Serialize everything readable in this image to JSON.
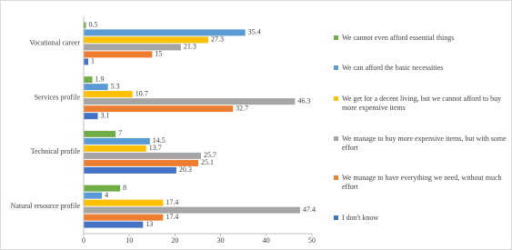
{
  "chart_data": {
    "type": "bar",
    "orientation": "horizontal",
    "categories": [
      "Vocational career",
      "Services profile",
      "Technical profile",
      "Natural resource profile"
    ],
    "series": [
      {
        "name": "We cannot even afford essential things",
        "color": "#70ad47",
        "values": [
          0.5,
          1.9,
          7,
          8
        ]
      },
      {
        "name": "We can afford the basic necessities",
        "color": "#5b9bd5",
        "values": [
          35.4,
          5.3,
          14.5,
          4
        ]
      },
      {
        "name": "We get for a decent living, but we cannot afford to buy more expensive items",
        "color": "#ffc000",
        "values": [
          27.3,
          10.7,
          13.7,
          17.4
        ]
      },
      {
        "name": "We manage to buy more expensive items, but with some effort",
        "color": "#a5a5a5",
        "values": [
          21.3,
          46.3,
          25.7,
          47.4
        ]
      },
      {
        "name": "We manage to have everything we need, without much effort",
        "color": "#ed7d31",
        "values": [
          15,
          32.7,
          25.1,
          17.4
        ]
      },
      {
        "name": "I don't know",
        "color": "#4472c4",
        "values": [
          1,
          3.1,
          20.3,
          13
        ]
      }
    ],
    "xlim": [
      0,
      50
    ],
    "xticks": [
      0,
      10,
      20,
      30,
      40,
      50
    ],
    "grid": false,
    "legend": "right"
  }
}
